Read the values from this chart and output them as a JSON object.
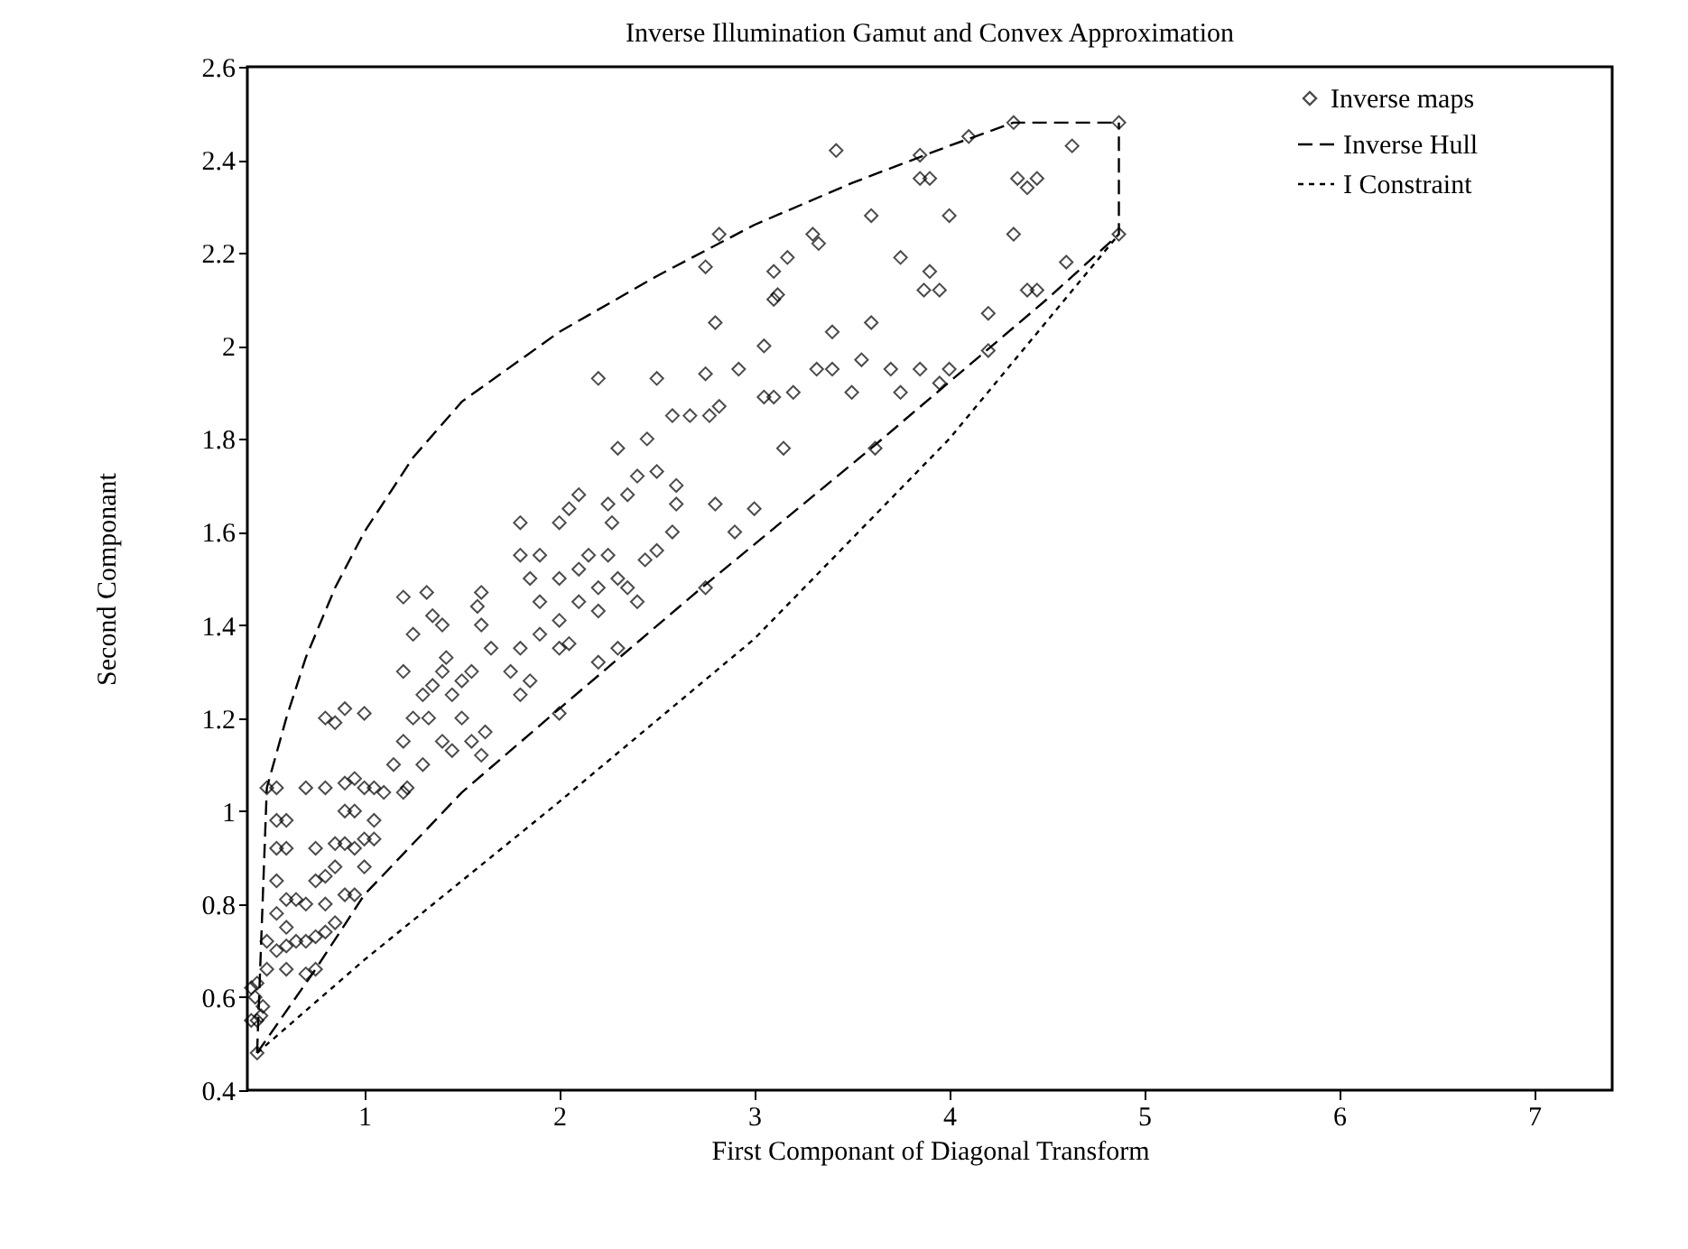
{
  "chart_data": {
    "type": "scatter",
    "title": "Inverse Illumination Gamut and Convex Approximation",
    "xlabel": "First Componant of Diagonal Transform",
    "ylabel": "Second Componant",
    "xlim": [
      0.4,
      7.4
    ],
    "ylim": [
      0.4,
      2.6
    ],
    "xticks": [
      1,
      2,
      3,
      4,
      5,
      6,
      7
    ],
    "yticks": [
      0.4,
      0.6,
      0.8,
      1,
      1.2,
      1.4,
      1.6,
      1.8,
      2,
      2.2,
      2.4,
      2.6
    ],
    "legend": "top right",
    "series": [
      {
        "name": "Inverse maps",
        "type": "scatter",
        "marker": "diamond",
        "color": "#000000",
        "x": [
          4.33,
          4.87,
          4.87,
          4.63,
          4.1,
          3.85,
          3.42,
          2.82,
          3.3,
          3.1,
          3.6,
          3.33,
          3.85,
          3.9,
          4.35,
          4.45,
          4.4,
          2.75,
          3.17,
          3.75,
          3.9,
          3.95,
          4.6,
          4.4,
          4.45,
          4.33,
          4.2,
          3.87,
          3.1,
          3.12,
          2.8,
          3.05,
          3.4,
          3.6,
          4.0,
          3.55,
          3.32,
          3.4,
          3.7,
          3.75,
          3.5,
          3.2,
          3.05,
          3.1,
          2.75,
          2.92,
          2.5,
          2.2,
          3.85,
          3.95,
          4.2,
          4.0,
          3.62,
          3.15,
          2.67,
          2.77,
          2.82,
          2.58,
          2.45,
          2.3,
          2.4,
          2.5,
          2.6,
          2.58,
          2.9,
          3.0,
          2.8,
          2.6,
          2.35,
          2.25,
          2.1,
          2.0,
          2.05,
          1.8,
          2.44,
          2.27,
          2.75,
          2.5,
          2.0,
          2.1,
          2.2,
          2.3,
          2.35,
          2.4,
          2.2,
          2.1,
          2.0,
          1.9,
          1.85,
          1.8,
          1.9,
          2.15,
          2.25,
          2.0,
          2.05,
          2.2,
          2.3,
          1.9,
          1.8,
          1.75,
          1.85,
          2.0,
          1.8,
          1.6,
          1.58,
          1.6,
          1.65,
          1.55,
          1.5,
          1.45,
          1.4,
          1.35,
          1.42,
          1.5,
          1.55,
          1.62,
          1.6,
          1.45,
          1.4,
          1.33,
          1.3,
          1.25,
          1.35,
          1.2,
          1.32,
          1.4,
          1.2,
          1.25,
          1.2,
          1.15,
          1.3,
          1.22,
          1.2,
          1.1,
          0.8,
          0.9,
          1.0,
          0.85,
          0.5,
          0.55,
          0.7,
          0.8,
          0.9,
          0.95,
          1.0,
          1.05,
          0.9,
          0.95,
          1.05,
          0.55,
          0.6,
          0.55,
          0.6,
          0.75,
          0.85,
          0.9,
          0.95,
          1.0,
          1.05,
          1.0,
          0.85,
          0.8,
          0.75,
          0.55,
          0.6,
          0.65,
          0.7,
          0.8,
          0.9,
          0.95,
          0.55,
          0.6,
          0.65,
          0.7,
          0.6,
          0.75,
          0.8,
          0.85,
          0.5,
          0.55,
          0.5,
          0.6,
          0.7,
          0.75,
          0.45,
          0.42,
          0.44,
          0.48,
          0.42,
          0.45,
          0.47,
          0.45
        ],
        "values": [
          2.48,
          2.48,
          2.24,
          2.43,
          2.45,
          2.41,
          2.42,
          2.24,
          2.24,
          2.16,
          2.28,
          2.22,
          2.36,
          2.36,
          2.36,
          2.36,
          2.34,
          2.17,
          2.19,
          2.19,
          2.16,
          2.12,
          2.18,
          2.12,
          2.12,
          2.24,
          2.07,
          2.12,
          2.1,
          2.11,
          2.05,
          2.0,
          2.03,
          2.05,
          2.28,
          1.97,
          1.95,
          1.95,
          1.95,
          1.9,
          1.9,
          1.9,
          1.89,
          1.89,
          1.94,
          1.95,
          1.93,
          1.93,
          1.95,
          1.92,
          1.99,
          1.95,
          1.78,
          1.78,
          1.85,
          1.85,
          1.87,
          1.85,
          1.8,
          1.78,
          1.72,
          1.73,
          1.7,
          1.6,
          1.6,
          1.65,
          1.66,
          1.66,
          1.68,
          1.66,
          1.68,
          1.62,
          1.65,
          1.62,
          1.54,
          1.62,
          1.48,
          1.56,
          1.5,
          1.52,
          1.48,
          1.5,
          1.48,
          1.45,
          1.43,
          1.45,
          1.41,
          1.45,
          1.5,
          1.55,
          1.55,
          1.55,
          1.55,
          1.35,
          1.36,
          1.32,
          1.35,
          1.38,
          1.35,
          1.3,
          1.28,
          1.21,
          1.25,
          1.47,
          1.44,
          1.4,
          1.35,
          1.3,
          1.28,
          1.25,
          1.3,
          1.27,
          1.33,
          1.2,
          1.15,
          1.17,
          1.12,
          1.13,
          1.15,
          1.2,
          1.25,
          1.38,
          1.42,
          1.46,
          1.47,
          1.4,
          1.3,
          1.2,
          1.15,
          1.1,
          1.1,
          1.05,
          1.04,
          1.04,
          1.2,
          1.22,
          1.21,
          1.19,
          1.05,
          1.05,
          1.05,
          1.05,
          1.06,
          1.07,
          1.05,
          1.05,
          1.0,
          1.0,
          0.98,
          0.98,
          0.98,
          0.92,
          0.92,
          0.92,
          0.93,
          0.93,
          0.92,
          0.94,
          0.94,
          0.88,
          0.88,
          0.86,
          0.85,
          0.85,
          0.81,
          0.81,
          0.8,
          0.8,
          0.82,
          0.82,
          0.78,
          0.75,
          0.72,
          0.72,
          0.71,
          0.73,
          0.74,
          0.76,
          0.72,
          0.7,
          0.66,
          0.66,
          0.65,
          0.66,
          0.63,
          0.62,
          0.6,
          0.58,
          0.55,
          0.55,
          0.56,
          0.48
        ]
      },
      {
        "name": "Inverse Hull",
        "type": "line",
        "line_style": "dashed",
        "color": "#000000",
        "x": [
          0.45,
          0.5,
          0.6,
          0.7,
          0.85,
          1.0,
          1.25,
          1.5,
          2.0,
          2.5,
          3.0,
          3.5,
          4.0,
          4.33,
          4.87
        ],
        "values": [
          0.48,
          1.05,
          1.2,
          1.33,
          1.48,
          1.6,
          1.76,
          1.88,
          2.03,
          2.15,
          2.26,
          2.35,
          2.43,
          2.48,
          2.48
        ]
      },
      {
        "type": "line",
        "line_style": "dashed",
        "color": "#000000",
        "x": [
          0.45,
          0.75,
          1.0,
          1.5,
          2.0,
          2.73,
          3.6,
          4.5,
          4.87,
          4.87
        ],
        "values": [
          0.48,
          0.66,
          0.82,
          1.04,
          1.22,
          1.48,
          1.78,
          2.1,
          2.24,
          2.48
        ]
      },
      {
        "name": "I Constraint",
        "type": "line",
        "line_style": "dotted",
        "color": "#000000",
        "x": [
          0.45,
          1.0,
          2.0,
          3.0,
          4.0,
          4.87
        ],
        "values": [
          0.48,
          0.68,
          1.02,
          1.37,
          1.8,
          2.24
        ]
      }
    ]
  }
}
